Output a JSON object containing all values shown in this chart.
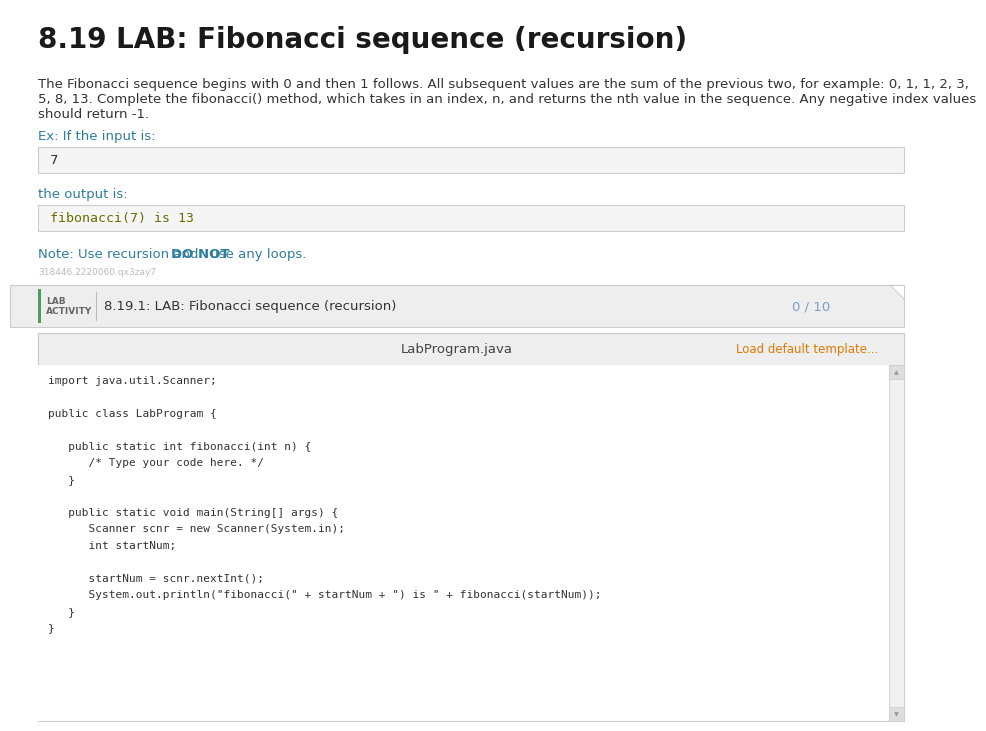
{
  "title": "8.19 LAB: Fibonacci sequence (recursion)",
  "title_color": "#1a1a1a",
  "title_fontsize": 20,
  "bg_color": "#ffffff",
  "description_color": "#333333",
  "description_fontsize": 9.5,
  "description_lines": [
    "The Fibonacci sequence begins with 0 and then 1 follows. All subsequent values are the sum of the previous two, for example: 0, 1, 1, 2, 3,",
    "5, 8, 13. Complete the fibonacci() method, which takes in an index, n, and returns the nth value in the sequence. Any negative index values",
    "should return -1."
  ],
  "ex_label": "Ex: If the input is:",
  "ex_label_color": "#2e7d9e",
  "input_box_value": "7",
  "input_box_bg": "#f5f5f5",
  "input_box_border": "#cccccc",
  "output_label": "the output is:",
  "output_label_color": "#2e7d9e",
  "output_box_value": "fibonacci(7) is 13",
  "output_box_bg": "#f5f5f5",
  "output_box_border": "#cccccc",
  "output_code_color": "#6b6b00",
  "note_text": "Note: Use recursion and ",
  "note_bold": "DO NOT",
  "note_end": " use any loops.",
  "note_color": "#2e7d9e",
  "watermark": "318446.2220060.qx3zay7",
  "watermark_color": "#bbbbbb",
  "watermark_fontsize": 6.5,
  "lab_bar_bg": "#eeeeee",
  "lab_bar_border": "#cccccc",
  "lab_label_line1": "LAB",
  "lab_label_line2": "ACTIVITY",
  "lab_label_color": "#666666",
  "lab_label_fontsize": 6.5,
  "lab_accent_color": "#4a9e5c",
  "lab_title_text": "8.19.1: LAB: Fibonacci sequence (recursion)",
  "lab_title_color": "#333333",
  "lab_title_fontsize": 9.5,
  "lab_score": "0 / 10",
  "lab_score_color": "#7b9ec7",
  "lab_score_fontsize": 9.5,
  "code_panel_bg": "#f8f8f8",
  "code_header_bg": "#eeeeee",
  "code_header_border": "#cccccc",
  "code_filename": "LabProgram.java",
  "code_filename_color": "#444444",
  "code_filename_fontsize": 9.5,
  "code_load_link": "Load default template...",
  "code_load_color": "#e07b00",
  "code_load_fontsize": 8.5,
  "code_bg": "#ffffff",
  "code_border": "#cccccc",
  "code_font_color": "#333333",
  "code_fontsize": 8.0,
  "code_lines": [
    "import java.util.Scanner;",
    "",
    "public class LabProgram {",
    "",
    "   public static int fibonacci(int n) {",
    "      /* Type your code here. */",
    "   }",
    "",
    "   public static void main(String[] args) {",
    "      Scanner scnr = new Scanner(System.in);",
    "      int startNum;",
    "",
    "      startNum = scnr.nextInt();",
    "      System.out.println(\"fibonacci(\" + startNum + \") is \" + fibonacci(startNum));",
    "   }",
    "}"
  ],
  "scrollbar_color": "#cccccc",
  "corner_shape_color": "#cccccc"
}
